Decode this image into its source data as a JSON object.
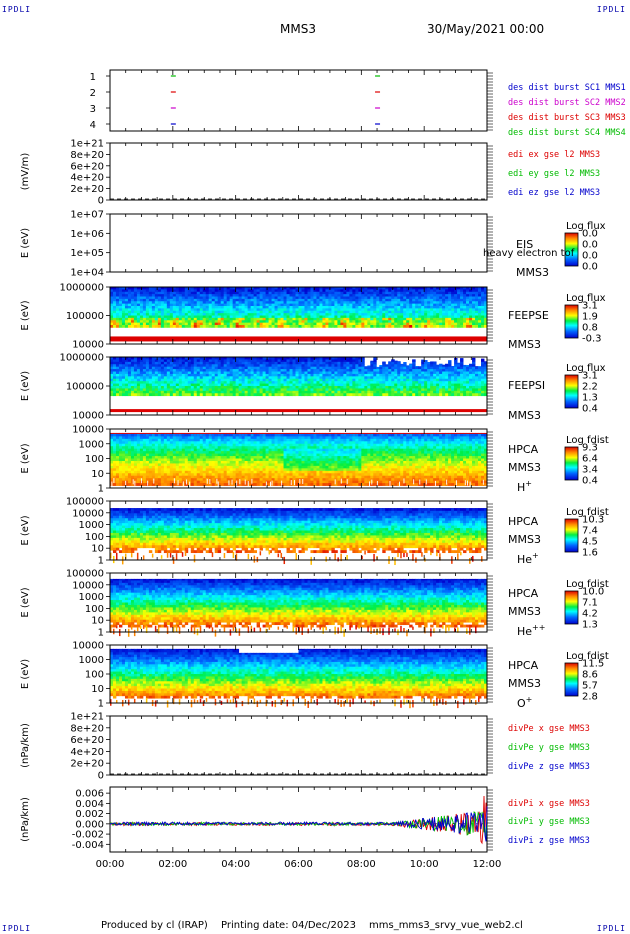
{
  "header": {
    "corner_label": "IPDLI",
    "spacecraft": "MMS3",
    "datetime": "30/May/2021 00:00"
  },
  "footer": {
    "produced_by": "Produced by cl (IRAP)",
    "printing_date": "Printing date: 04/Dec/2023",
    "script_name": "mms_mms3_srvy_vue_web2.cl"
  },
  "chart_data": {
    "type": "multi-panel time series",
    "x_axis": {
      "start": "00:00",
      "end": "12:00",
      "tick_labels": [
        "00:00",
        "02:00",
        "04:00",
        "06:00",
        "08:00",
        "10:00",
        "12:00"
      ],
      "range_hours": [
        0,
        12
      ]
    },
    "panels": [
      {
        "id": "burst",
        "type": "timeline",
        "yticks": [
          "4",
          "3",
          "2",
          "1"
        ],
        "legend": [
          {
            "label": "des dist burst SC1 MMS1",
            "color": "#0000cc",
            "row": 1
          },
          {
            "label": "des dist burst SC2 MMS2",
            "color": "#cc00cc",
            "row": 2
          },
          {
            "label": "des dist burst SC3 MMS3",
            "color": "#dd0000",
            "row": 3
          },
          {
            "label": "des dist burst SC4 MMS4",
            "color": "#00bb00",
            "row": 4
          }
        ],
        "intervals_hours": [
          2.0,
          8.5
        ]
      },
      {
        "id": "edi",
        "type": "line",
        "ylabel": "(mV/m)",
        "yticks": [
          "1e+21",
          "8e+20",
          "6e+20",
          "4e+20",
          "2e+20",
          "0"
        ],
        "ylim": [
          0,
          1e+21
        ],
        "legend": [
          {
            "label": "edi ex gse l2 MMS3",
            "color": "#dd0000"
          },
          {
            "label": "edi ey gse l2 MMS3",
            "color": "#00bb00"
          },
          {
            "label": "edi ez gse l2 MMS3",
            "color": "#0000cc"
          }
        ],
        "dashed_zero_line": true
      },
      {
        "id": "eis",
        "type": "spectrogram",
        "ylabel": "E (eV)",
        "yticks": [
          "1e+07",
          "1e+06",
          "1e+05",
          "1e+04"
        ],
        "ylog": [
          4,
          7
        ],
        "labels": [
          "EIS",
          "MMS3"
        ],
        "overlay_text": "heavy electron tof",
        "colorbar": {
          "title": "Log flux",
          "ticks": [
            "0.0",
            "0.0",
            "0.0",
            "0.0"
          ]
        },
        "empty": true
      },
      {
        "id": "feepse",
        "type": "spectrogram",
        "ylabel": "E (eV)",
        "yticks": [
          "1000000",
          "100000",
          "10000"
        ],
        "ylog": [
          4,
          6
        ],
        "labels": [
          "FEEPSE",
          "MMS3"
        ],
        "colorbar": {
          "title": "Log flux",
          "ticks": [
            "3.1",
            "1.9",
            "0.8",
            "-0.3"
          ]
        },
        "energy_range_log": [
          4.6,
          6.0
        ],
        "low_band_level": 0.92
      },
      {
        "id": "feepsi",
        "type": "spectrogram",
        "ylabel": "E (eV)",
        "yticks": [
          "1000000",
          "100000",
          "10000"
        ],
        "ylog": [
          4,
          6
        ],
        "labels": [
          "FEEPSI",
          "MMS3"
        ],
        "colorbar": {
          "title": "Log flux",
          "ticks": [
            "3.1",
            "2.2",
            "1.3",
            "0.4"
          ]
        },
        "energy_range_log": [
          4.7,
          6.0
        ],
        "low_band_level": 0.95
      },
      {
        "id": "hpca_h",
        "type": "spectrogram",
        "ylabel": "E (eV)",
        "yticks": [
          "10000",
          "1000",
          "100",
          "10",
          "1"
        ],
        "ylog": [
          0,
          4.5
        ],
        "labels": [
          "HPCA",
          "MMS3"
        ],
        "species": "H",
        "species_charge": "+",
        "colorbar": {
          "title": "Log fdist",
          "ticks": [
            "9.3",
            "6.4",
            "3.4",
            "0.4"
          ]
        },
        "energy_range_log": [
          0.2,
          4.2
        ]
      },
      {
        "id": "hpca_he",
        "type": "spectrogram",
        "ylabel": "E (eV)",
        "yticks": [
          "100000",
          "10000",
          "1000",
          "100",
          "10",
          "1"
        ],
        "ylog": [
          0,
          5
        ],
        "labels": [
          "HPCA",
          "MMS3"
        ],
        "species": "He",
        "species_charge": "+",
        "colorbar": {
          "title": "Log fdist",
          "ticks": [
            "10.3",
            "7.4",
            "4.5",
            "1.6"
          ]
        },
        "energy_range_log": [
          0.8,
          4.4
        ]
      },
      {
        "id": "hpca_hepp",
        "type": "spectrogram",
        "ylabel": "E (eV)",
        "yticks": [
          "100000",
          "10000",
          "1000",
          "100",
          "10",
          "1"
        ],
        "ylog": [
          0,
          5
        ],
        "labels": [
          "HPCA",
          "MMS3"
        ],
        "species": "He",
        "species_charge": "++",
        "colorbar": {
          "title": "Log fdist",
          "ticks": [
            "10.0",
            "7.1",
            "4.2",
            "1.3"
          ]
        },
        "energy_range_log": [
          0.6,
          4.5
        ]
      },
      {
        "id": "hpca_o",
        "type": "spectrogram",
        "ylabel": "E (eV)",
        "yticks": [
          "10000",
          "1000",
          "100",
          "10",
          "1"
        ],
        "ylog": [
          0,
          4.5
        ],
        "labels": [
          "HPCA",
          "MMS3"
        ],
        "species": "O",
        "species_charge": "+",
        "colorbar": {
          "title": "Log fdist",
          "ticks": [
            "11.5",
            "8.6",
            "5.7",
            "2.8"
          ]
        },
        "energy_range_log": [
          0.4,
          4.2
        ]
      },
      {
        "id": "divpe",
        "type": "line",
        "ylabel": "(nPa/km)",
        "yticks": [
          "1e+21",
          "8e+20",
          "6e+20",
          "4e+20",
          "2e+20",
          "0"
        ],
        "ylim": [
          0,
          1e+21
        ],
        "legend": [
          {
            "label": "divPe x gse MMS3",
            "color": "#dd0000"
          },
          {
            "label": "divPe y gse MMS3",
            "color": "#00bb00"
          },
          {
            "label": "divPe z gse MMS3",
            "color": "#0000cc"
          }
        ],
        "dashed_zero_line": true
      },
      {
        "id": "divpi",
        "type": "line",
        "ylabel": "(nPa/km)",
        "yticks": [
          "0.006",
          "0.004",
          "0.002",
          "0.000",
          "-0.002",
          "-0.004"
        ],
        "ylim": [
          -0.0055,
          0.0072
        ],
        "legend": [
          {
            "label": "divPi x gse MMS3",
            "color": "#dd0000"
          },
          {
            "label": "divPi y gse MMS3",
            "color": "#00bb00"
          },
          {
            "label": "divPi z gse MMS3",
            "color": "#0000cc"
          }
        ],
        "noise_amplitude_early": 0.0003,
        "noise_amplitude_late": 0.0025
      }
    ]
  }
}
